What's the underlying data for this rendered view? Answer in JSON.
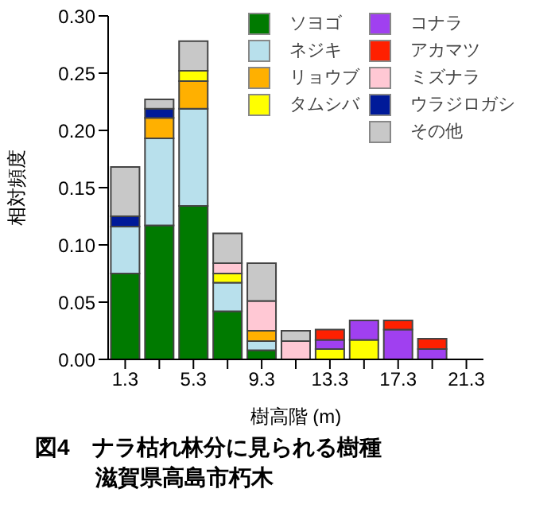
{
  "chart_data": {
    "type": "bar",
    "stacked": true,
    "title": "図4　ナラ枯れ林分に見られる樹種",
    "subtitle": "滋賀県高島市朽木",
    "xlabel": "樹高階 (m)",
    "ylabel": "相対頻度",
    "categories": [
      "1.3",
      null,
      "5.3",
      null,
      "9.3",
      null,
      "13.3",
      null,
      "17.3",
      null,
      "21.3"
    ],
    "series": [
      {
        "name": "ソヨゴ",
        "color": "#007a00",
        "values": [
          0.075,
          0.117,
          0.134,
          0.042,
          0.008,
          0,
          0,
          0,
          0,
          0,
          0
        ]
      },
      {
        "name": "ネジキ",
        "color": "#b8e0ec",
        "values": [
          0.041,
          0.076,
          0.085,
          0.025,
          0.008,
          0,
          0,
          0,
          0,
          0,
          0
        ]
      },
      {
        "name": "リョウブ",
        "color": "#ffb000",
        "values": [
          0,
          0.018,
          0.024,
          0,
          0.009,
          0,
          0,
          0,
          0,
          0,
          0
        ]
      },
      {
        "name": "タムシバ",
        "color": "#ffff00",
        "values": [
          0,
          0,
          0.009,
          0.008,
          0,
          0,
          0.009,
          0.017,
          0,
          0,
          0
        ]
      },
      {
        "name": "コナラ",
        "color": "#a040f0",
        "values": [
          0,
          0,
          0,
          0,
          0,
          0,
          0.008,
          0.017,
          0.026,
          0.009,
          0
        ]
      },
      {
        "name": "アカマツ",
        "color": "#ff2000",
        "values": [
          0,
          0,
          0,
          0,
          0,
          0,
          0.009,
          0,
          0.008,
          0.009,
          0
        ]
      },
      {
        "name": "ミズナラ",
        "color": "#ffc8d4",
        "values": [
          0,
          0,
          0,
          0.009,
          0.026,
          0.016,
          0,
          0,
          0,
          0,
          0
        ]
      },
      {
        "name": "ウラジロガシ",
        "color": "#001a99",
        "values": [
          0.009,
          0.008,
          0,
          0,
          0,
          0,
          0,
          0,
          0,
          0,
          0
        ]
      },
      {
        "name": "その他",
        "color": "#c8c8c8",
        "values": [
          0.043,
          0.008,
          0.026,
          0.026,
          0.033,
          0.009,
          0,
          0,
          0,
          0,
          0
        ]
      }
    ],
    "ylim": [
      0,
      0.3
    ],
    "yticks": [
      {
        "value": 0,
        "label": "0.00"
      },
      {
        "value": 0.05,
        "label": "0.05"
      },
      {
        "value": 0.1,
        "label": "0.10"
      },
      {
        "value": 0.15,
        "label": "0.15"
      },
      {
        "value": 0.2,
        "label": "0.20"
      },
      {
        "value": 0.25,
        "label": "0.25"
      },
      {
        "value": 0.3,
        "label": "0.30"
      }
    ],
    "legend": "top right",
    "grid": false
  }
}
